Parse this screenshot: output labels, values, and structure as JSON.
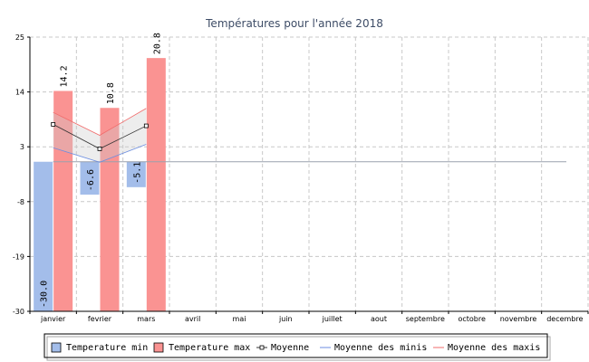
{
  "chart_data": {
    "type": "bar",
    "title": "Températures pour l'année 2018",
    "categories": [
      "janvier",
      "fevrier",
      "mars",
      "avril",
      "mai",
      "juin",
      "juillet",
      "aout",
      "septembre",
      "octobre",
      "novembre",
      "decembre"
    ],
    "yticks": [
      25,
      14,
      3,
      -8,
      -19,
      -30
    ],
    "ylim": [
      -30,
      25
    ],
    "grid": true,
    "legend_position": "bottom",
    "series": [
      {
        "name": "Temperature min",
        "type": "bar",
        "color": "#a3bdea",
        "values": [
          -30.0,
          -6.6,
          -5.1,
          null,
          null,
          null,
          null,
          null,
          null,
          null,
          null,
          null
        ]
      },
      {
        "name": "Temperature max",
        "type": "bar",
        "color": "#fa9392",
        "values": [
          14.2,
          10.8,
          20.8,
          null,
          null,
          null,
          null,
          null,
          null,
          null,
          null,
          null
        ]
      },
      {
        "name": "Moyenne",
        "type": "line",
        "color": "#333333",
        "values": [
          7.5,
          2.6,
          7.2,
          null,
          null,
          null,
          null,
          null,
          null,
          null,
          null,
          null
        ]
      },
      {
        "name": "Moyenne des minis",
        "type": "line",
        "color": "#6c8ee0",
        "values": [
          2.8,
          -0.1,
          3.5,
          null,
          null,
          null,
          null,
          null,
          null,
          null,
          null,
          null
        ]
      },
      {
        "name": "Moyenne des maxis",
        "type": "line",
        "color": "#f26b6b",
        "values": [
          9.9,
          5.3,
          10.7,
          null,
          null,
          null,
          null,
          null,
          null,
          null,
          null,
          null
        ]
      }
    ],
    "reference_line": {
      "value": 0,
      "color": "#9aa1ad"
    },
    "data_labels": [
      "-30.0",
      "-6.6",
      "-5.1",
      "14.2",
      "10.8",
      "20.8"
    ]
  }
}
